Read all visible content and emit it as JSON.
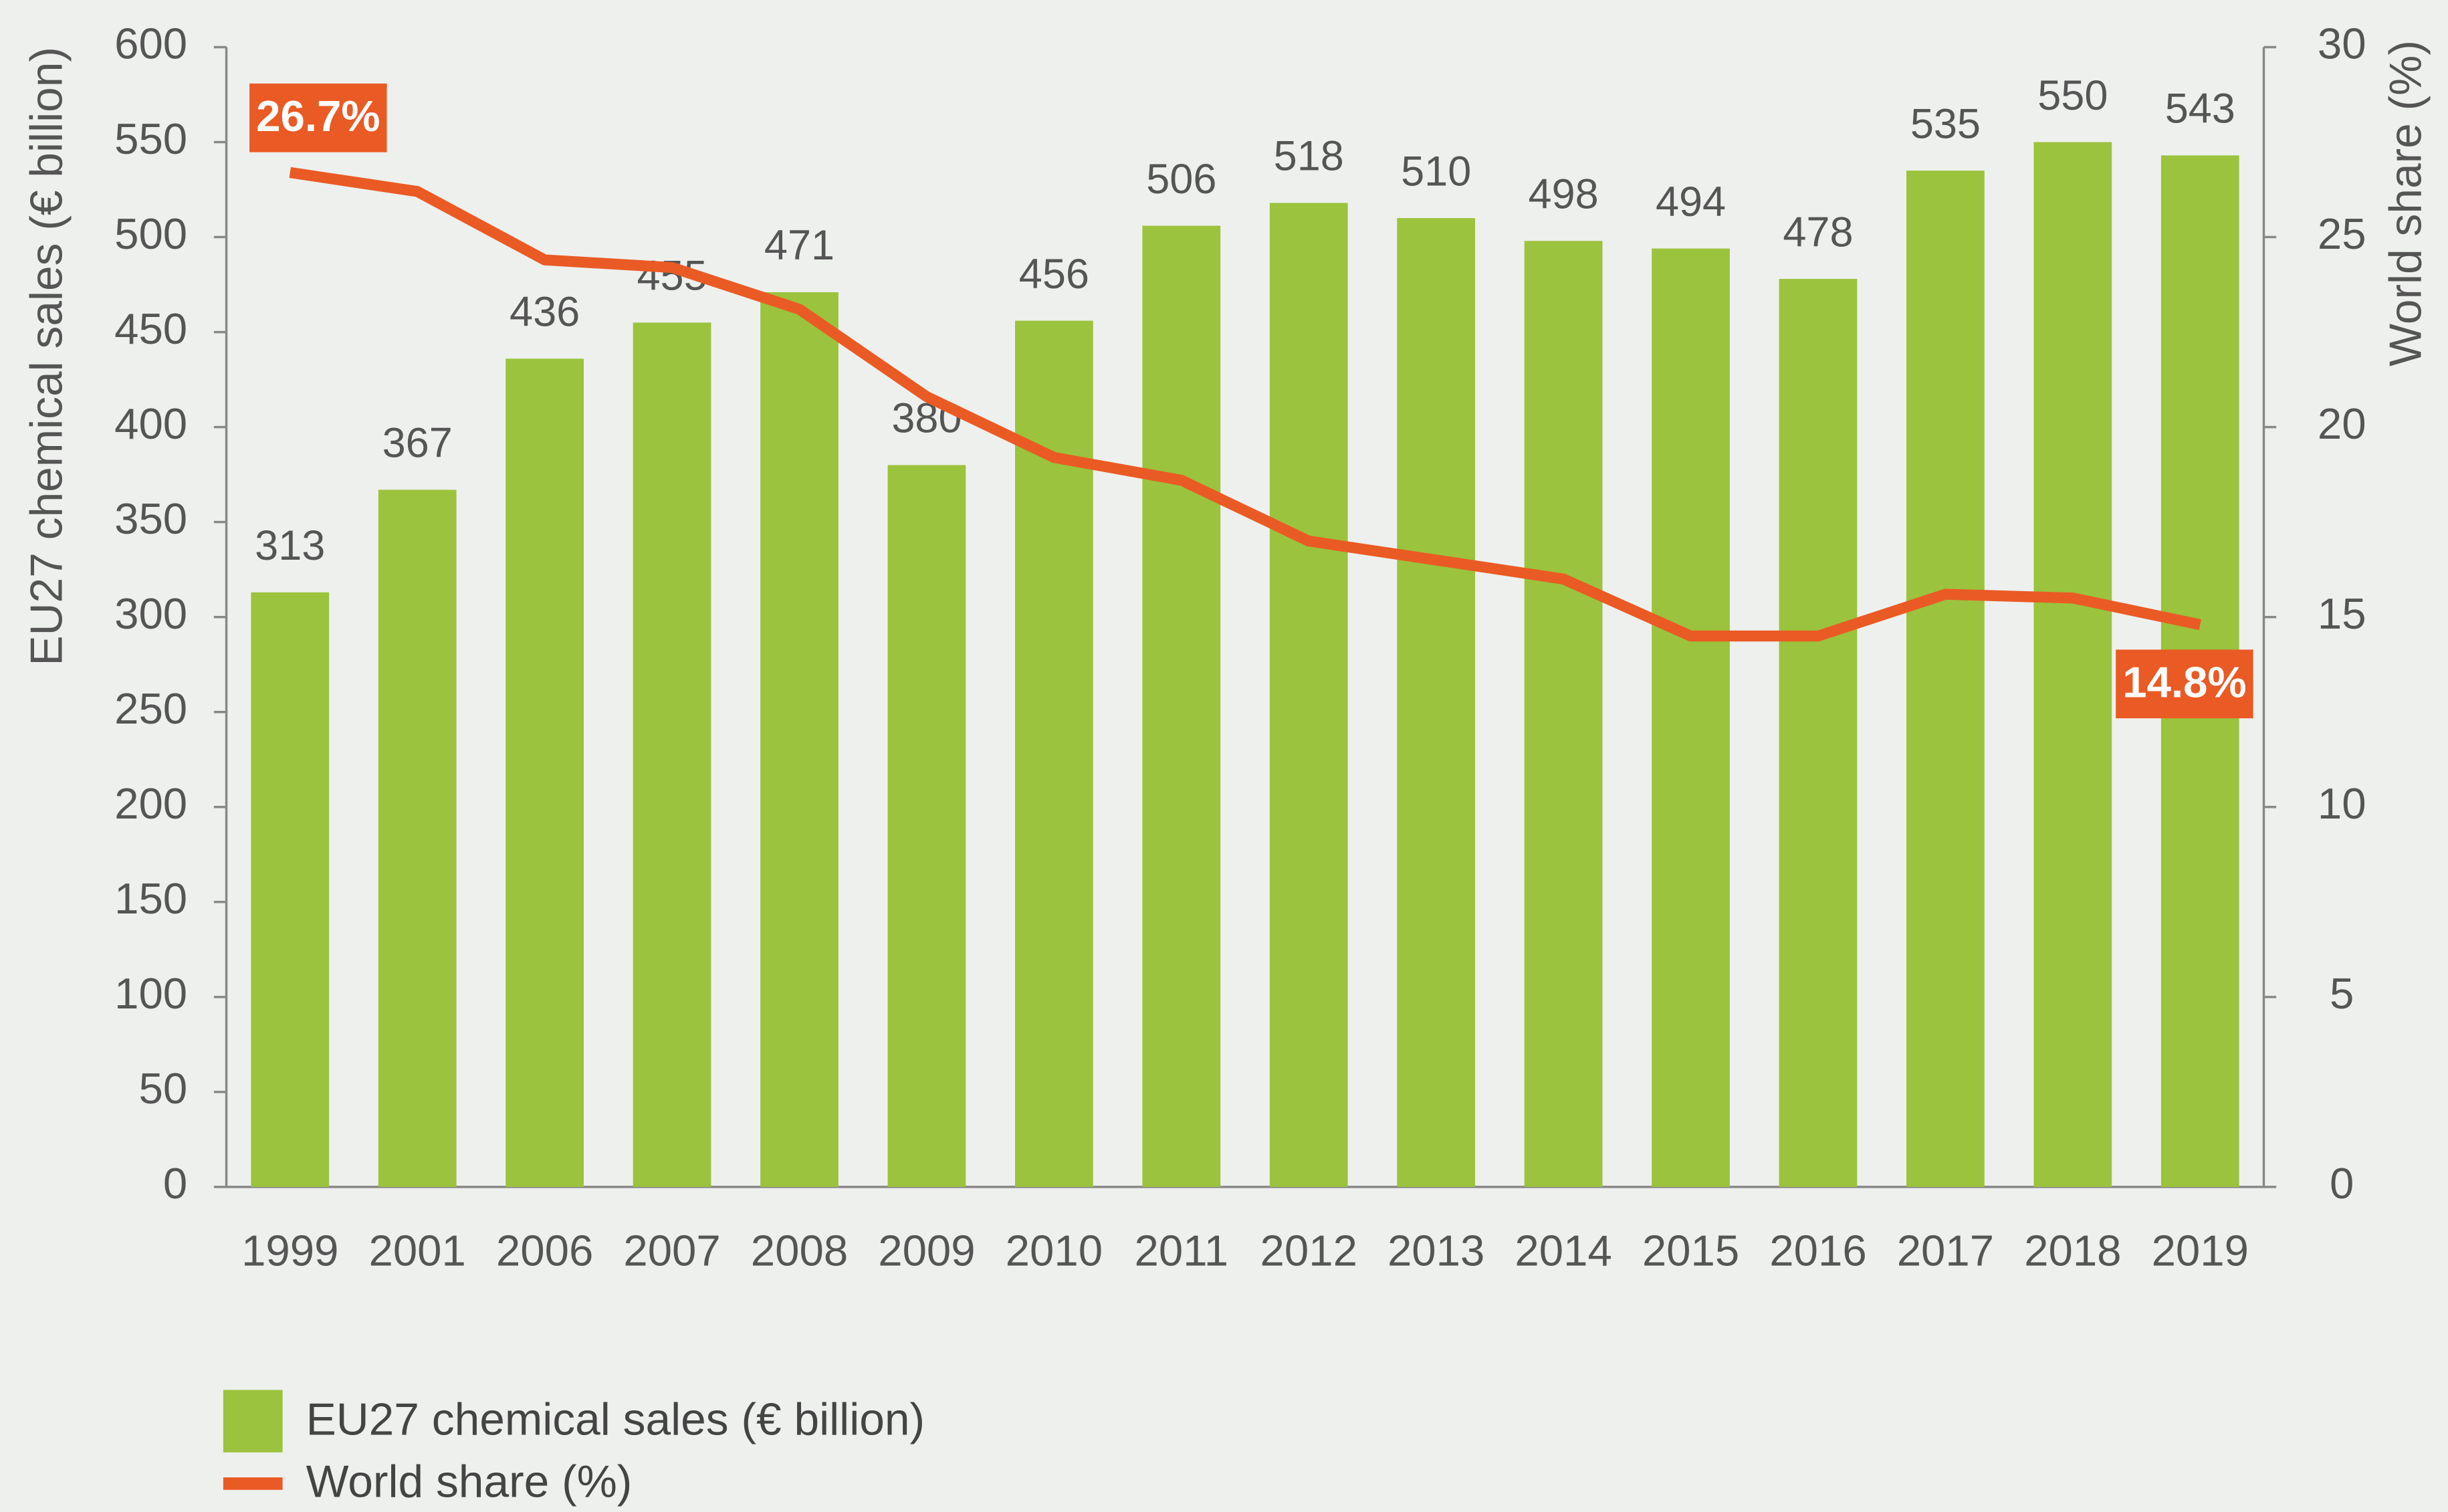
{
  "chart_data": {
    "type": "bar",
    "categories": [
      "1999",
      "2001",
      "2006",
      "2007",
      "2008",
      "2009",
      "2010",
      "2011",
      "2012",
      "2013",
      "2014",
      "2015",
      "2016",
      "2017",
      "2018",
      "2019"
    ],
    "series": [
      {
        "name": "EU27 chemical sales (€ billion)",
        "type": "bar",
        "color": "#9bc33d",
        "axis": "y",
        "values": [
          313,
          367,
          436,
          455,
          471,
          380,
          456,
          506,
          518,
          510,
          498,
          494,
          478,
          535,
          550,
          543
        ]
      },
      {
        "name": "World share (%)",
        "type": "line",
        "color": "#ea5a24",
        "axis": "y2",
        "values": [
          26.7,
          26.2,
          24.4,
          24.2,
          23.1,
          20.8,
          19.2,
          18.6,
          17.0,
          16.5,
          16.0,
          14.5,
          14.5,
          15.6,
          15.5,
          14.8
        ],
        "value_labels": [
          "26.7%",
          null,
          null,
          null,
          null,
          null,
          null,
          null,
          null,
          null,
          null,
          null,
          null,
          null,
          null,
          "14.8%"
        ]
      }
    ],
    "ylabel": "EU27 chemical sales (€ billion)",
    "y2label": "World share (%)",
    "ylim": [
      0,
      600
    ],
    "yticks": [
      0,
      50,
      100,
      150,
      200,
      250,
      300,
      350,
      400,
      450,
      500,
      550,
      600
    ],
    "y2lim": [
      0,
      30
    ],
    "y2ticks": [
      0,
      5,
      10,
      15,
      20,
      25,
      30
    ],
    "legend": "bottom-left"
  }
}
